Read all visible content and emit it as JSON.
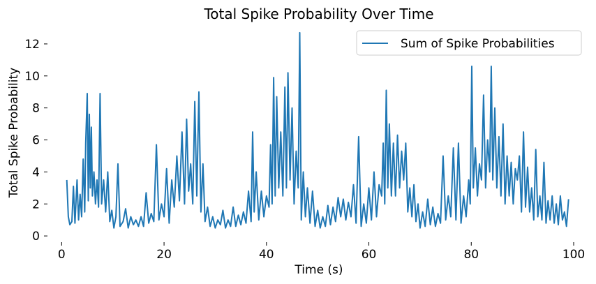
{
  "chart_data": {
    "type": "line",
    "title": "Total Spike Probability Over Time",
    "xlabel": "Time (s)",
    "ylabel": "Total Spike Probability",
    "xlim": [
      -2.5,
      101.5
    ],
    "ylim": [
      -0.3,
      13.0
    ],
    "xticks": [
      0,
      20,
      40,
      60,
      80,
      100
    ],
    "yticks": [
      0,
      2,
      4,
      6,
      8,
      10,
      12
    ],
    "grid": false,
    "legend_position": "top-right",
    "series": [
      {
        "name": "Sum of Spike Probabilities",
        "color": "#1f77b4",
        "points": [
          [
            1.0,
            3.5
          ],
          [
            1.3,
            1.2
          ],
          [
            1.6,
            0.7
          ],
          [
            2.0,
            0.9
          ],
          [
            2.3,
            3.1
          ],
          [
            2.6,
            0.8
          ],
          [
            3.0,
            3.5
          ],
          [
            3.3,
            1.0
          ],
          [
            3.6,
            2.6
          ],
          [
            3.9,
            1.2
          ],
          [
            4.2,
            4.8
          ],
          [
            4.5,
            1.5
          ],
          [
            4.7,
            5.8
          ],
          [
            5.0,
            8.9
          ],
          [
            5.2,
            2.2
          ],
          [
            5.4,
            7.6
          ],
          [
            5.6,
            3.0
          ],
          [
            5.8,
            6.8
          ],
          [
            6.0,
            2.5
          ],
          [
            6.3,
            4.0
          ],
          [
            6.6,
            2.0
          ],
          [
            6.9,
            3.5
          ],
          [
            7.2,
            1.8
          ],
          [
            7.5,
            8.9
          ],
          [
            7.8,
            2.0
          ],
          [
            8.2,
            3.5
          ],
          [
            8.6,
            1.5
          ],
          [
            9.0,
            4.0
          ],
          [
            9.4,
            0.9
          ],
          [
            9.8,
            1.6
          ],
          [
            10.2,
            0.5
          ],
          [
            10.6,
            1.2
          ],
          [
            11.0,
            4.5
          ],
          [
            11.4,
            0.6
          ],
          [
            12.0,
            0.9
          ],
          [
            12.5,
            1.7
          ],
          [
            13.0,
            0.5
          ],
          [
            13.5,
            1.2
          ],
          [
            14.0,
            0.7
          ],
          [
            14.5,
            1.0
          ],
          [
            15.0,
            0.6
          ],
          [
            15.5,
            1.2
          ],
          [
            16.0,
            0.6
          ],
          [
            16.5,
            2.7
          ],
          [
            17.0,
            0.8
          ],
          [
            17.5,
            1.4
          ],
          [
            18.0,
            0.9
          ],
          [
            18.5,
            5.7
          ],
          [
            19.0,
            1.0
          ],
          [
            19.5,
            2.0
          ],
          [
            20.0,
            1.2
          ],
          [
            20.5,
            4.2
          ],
          [
            21.0,
            0.8
          ],
          [
            21.5,
            3.5
          ],
          [
            22.0,
            1.8
          ],
          [
            22.5,
            5.0
          ],
          [
            23.0,
            2.2
          ],
          [
            23.5,
            6.5
          ],
          [
            24.0,
            2.0
          ],
          [
            24.4,
            7.3
          ],
          [
            24.8,
            2.8
          ],
          [
            25.2,
            4.5
          ],
          [
            25.6,
            2.0
          ],
          [
            26.0,
            8.4
          ],
          [
            26.4,
            2.5
          ],
          [
            26.8,
            9.0
          ],
          [
            27.2,
            1.5
          ],
          [
            27.6,
            4.5
          ],
          [
            28.0,
            0.9
          ],
          [
            28.5,
            1.8
          ],
          [
            29.0,
            0.6
          ],
          [
            29.5,
            1.2
          ],
          [
            30.0,
            0.5
          ],
          [
            30.5,
            1.0
          ],
          [
            31.0,
            0.7
          ],
          [
            31.5,
            1.6
          ],
          [
            32.0,
            0.5
          ],
          [
            32.5,
            1.0
          ],
          [
            33.0,
            0.6
          ],
          [
            33.5,
            1.8
          ],
          [
            34.0,
            0.6
          ],
          [
            34.5,
            1.3
          ],
          [
            35.0,
            0.7
          ],
          [
            35.5,
            1.5
          ],
          [
            36.0,
            0.8
          ],
          [
            36.5,
            2.8
          ],
          [
            37.0,
            0.9
          ],
          [
            37.3,
            6.5
          ],
          [
            37.6,
            1.5
          ],
          [
            38.0,
            4.0
          ],
          [
            38.5,
            1.0
          ],
          [
            39.0,
            2.8
          ],
          [
            39.5,
            1.2
          ],
          [
            40.0,
            2.5
          ],
          [
            40.5,
            1.8
          ],
          [
            40.8,
            5.7
          ],
          [
            41.1,
            2.0
          ],
          [
            41.4,
            9.9
          ],
          [
            41.7,
            2.5
          ],
          [
            42.0,
            8.7
          ],
          [
            42.4,
            3.0
          ],
          [
            42.8,
            6.5
          ],
          [
            43.2,
            2.5
          ],
          [
            43.6,
            9.3
          ],
          [
            43.9,
            3.0
          ],
          [
            44.2,
            10.2
          ],
          [
            44.6,
            3.5
          ],
          [
            45.0,
            8.0
          ],
          [
            45.4,
            2.0
          ],
          [
            45.8,
            5.3
          ],
          [
            46.2,
            3.0
          ],
          [
            46.5,
            12.7
          ],
          [
            46.8,
            1.0
          ],
          [
            47.2,
            4.0
          ],
          [
            47.6,
            1.2
          ],
          [
            48.0,
            3.0
          ],
          [
            48.5,
            0.8
          ],
          [
            49.0,
            2.8
          ],
          [
            49.5,
            0.6
          ],
          [
            50.0,
            1.6
          ],
          [
            50.5,
            0.5
          ],
          [
            51.0,
            1.2
          ],
          [
            51.5,
            0.6
          ],
          [
            52.0,
            1.9
          ],
          [
            52.5,
            0.7
          ],
          [
            53.0,
            1.8
          ],
          [
            53.5,
            0.9
          ],
          [
            54.0,
            2.4
          ],
          [
            54.5,
            1.2
          ],
          [
            55.0,
            2.3
          ],
          [
            55.5,
            1.0
          ],
          [
            56.0,
            2.1
          ],
          [
            56.5,
            1.2
          ],
          [
            57.0,
            3.2
          ],
          [
            57.5,
            0.8
          ],
          [
            58.0,
            6.2
          ],
          [
            58.5,
            0.6
          ],
          [
            59.0,
            2.0
          ],
          [
            59.5,
            0.8
          ],
          [
            60.0,
            3.0
          ],
          [
            60.5,
            1.0
          ],
          [
            61.0,
            4.0
          ],
          [
            61.5,
            1.2
          ],
          [
            62.0,
            3.2
          ],
          [
            62.5,
            2.5
          ],
          [
            62.8,
            5.8
          ],
          [
            63.1,
            2.0
          ],
          [
            63.4,
            9.1
          ],
          [
            63.7,
            3.0
          ],
          [
            64.0,
            7.0
          ],
          [
            64.4,
            2.5
          ],
          [
            64.8,
            5.8
          ],
          [
            65.2,
            2.5
          ],
          [
            65.6,
            6.3
          ],
          [
            66.0,
            3.0
          ],
          [
            66.4,
            5.3
          ],
          [
            66.8,
            3.5
          ],
          [
            67.2,
            5.8
          ],
          [
            67.6,
            1.5
          ],
          [
            68.0,
            3.0
          ],
          [
            68.4,
            1.2
          ],
          [
            68.8,
            3.2
          ],
          [
            69.2,
            0.9
          ],
          [
            69.6,
            2.0
          ],
          [
            70.0,
            0.5
          ],
          [
            70.5,
            1.5
          ],
          [
            71.0,
            0.6
          ],
          [
            71.5,
            2.3
          ],
          [
            72.0,
            0.7
          ],
          [
            72.5,
            1.8
          ],
          [
            73.0,
            0.6
          ],
          [
            73.5,
            1.4
          ],
          [
            74.0,
            0.8
          ],
          [
            74.5,
            5.0
          ],
          [
            75.0,
            1.0
          ],
          [
            75.5,
            2.5
          ],
          [
            76.0,
            1.2
          ],
          [
            76.5,
            5.5
          ],
          [
            77.0,
            1.0
          ],
          [
            77.5,
            5.8
          ],
          [
            78.0,
            0.8
          ],
          [
            78.5,
            2.5
          ],
          [
            79.0,
            1.2
          ],
          [
            79.5,
            3.5
          ],
          [
            79.8,
            2.0
          ],
          [
            80.1,
            10.6
          ],
          [
            80.4,
            3.0
          ],
          [
            80.8,
            5.5
          ],
          [
            81.2,
            2.5
          ],
          [
            81.6,
            4.5
          ],
          [
            82.0,
            3.5
          ],
          [
            82.4,
            8.8
          ],
          [
            82.8,
            3.0
          ],
          [
            83.2,
            6.0
          ],
          [
            83.6,
            4.0
          ],
          [
            83.9,
            10.6
          ],
          [
            84.2,
            3.5
          ],
          [
            84.6,
            8.0
          ],
          [
            85.0,
            3.0
          ],
          [
            85.4,
            6.2
          ],
          [
            85.8,
            2.5
          ],
          [
            86.2,
            7.0
          ],
          [
            86.6,
            2.0
          ],
          [
            87.0,
            5.0
          ],
          [
            87.4,
            2.5
          ],
          [
            87.8,
            4.6
          ],
          [
            88.2,
            2.0
          ],
          [
            88.6,
            4.2
          ],
          [
            89.0,
            3.5
          ],
          [
            89.4,
            5.0
          ],
          [
            89.8,
            1.5
          ],
          [
            90.2,
            6.5
          ],
          [
            90.6,
            1.8
          ],
          [
            91.0,
            4.3
          ],
          [
            91.4,
            1.5
          ],
          [
            91.8,
            3.0
          ],
          [
            92.2,
            1.0
          ],
          [
            92.6,
            5.4
          ],
          [
            93.0,
            1.2
          ],
          [
            93.4,
            2.5
          ],
          [
            93.8,
            1.0
          ],
          [
            94.2,
            4.6
          ],
          [
            94.6,
            0.8
          ],
          [
            95.0,
            2.2
          ],
          [
            95.4,
            1.0
          ],
          [
            95.8,
            2.5
          ],
          [
            96.2,
            0.8
          ],
          [
            96.6,
            2.0
          ],
          [
            97.0,
            0.7
          ],
          [
            97.4,
            2.5
          ],
          [
            97.8,
            1.0
          ],
          [
            98.2,
            1.5
          ],
          [
            98.6,
            0.6
          ],
          [
            99.0,
            2.3
          ]
        ]
      }
    ]
  }
}
